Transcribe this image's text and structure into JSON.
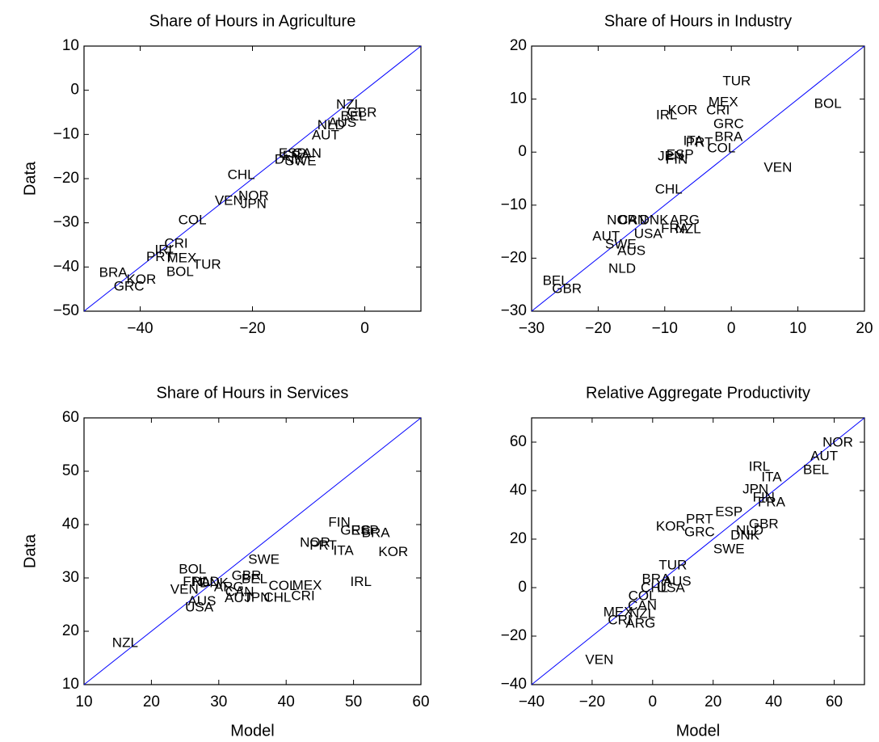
{
  "chart_data": [
    {
      "type": "scatter",
      "title": "Share of Hours in Agriculture",
      "ylabel": "Data",
      "color": "#0000ff",
      "labels": [
        "NZL",
        "GBR",
        "BEL",
        "AUS",
        "NLD",
        "AUT",
        "CAN",
        "ESP",
        "FRA",
        "DNK",
        "SWE",
        "CHL",
        "NOR",
        "VEN",
        "JPN",
        "COL",
        "CRI",
        "IRL",
        "PRT",
        "MEX",
        "KOR",
        "TUR",
        "BRA",
        "BOL",
        "GRC"
      ],
      "x": [
        -2.8,
        -0.5,
        -2,
        -4,
        -6,
        -7,
        -10.3,
        -12.9,
        -12.2,
        -13.5,
        -11.4,
        -22,
        -19.8,
        -24.2,
        -19.8,
        -30.7,
        -33.6,
        -35.5,
        -36.5,
        -32.6,
        -39.8,
        -28.1,
        -44.8,
        -32.9,
        -42
      ],
      "values": [
        -3.4,
        -5.2,
        -6,
        -7.5,
        -8,
        -10.3,
        -14.4,
        -14.4,
        -15,
        -15.8,
        -16.2,
        -19.3,
        -24,
        -25.1,
        -25.9,
        -29.5,
        -34.8,
        -36.3,
        -37.8,
        -38.1,
        -43,
        -39.6,
        -41.4,
        -41.2,
        -44.5
      ],
      "xlim": [
        -50,
        10
      ],
      "ylim": [
        -50,
        10
      ],
      "xticks": [
        {
          "value": -40,
          "label": "−40"
        },
        {
          "value": -20,
          "label": "−20"
        },
        0
      ],
      "yticks": [
        {
          "value": -50,
          "label": "−50"
        },
        {
          "value": -40,
          "label": "−40"
        },
        {
          "value": -30,
          "label": "−30"
        },
        {
          "value": -20,
          "label": "−20"
        },
        {
          "value": -10,
          "label": "−10"
        },
        0,
        10
      ]
    },
    {
      "type": "scatter",
      "title": "Share of Hours in Industry",
      "color": "#0000ff",
      "labels": [
        "TUR",
        "MEX",
        "KOR",
        "CRI",
        "IRL",
        "BOL",
        "GRC",
        "BRA",
        "ITA",
        "PRT",
        "COL",
        "JPN",
        "ESP",
        "FIN",
        "VEN",
        "CHL",
        "NOR",
        "CAN",
        "DNK",
        "ARG",
        "FRA",
        "NZL",
        "AUT",
        "USA",
        "SWE",
        "AUS",
        "NLD",
        "BEL",
        "GBR"
      ],
      "x": [
        0.8,
        -1.2,
        -7.3,
        -2,
        -9.7,
        14.5,
        -0.4,
        -0.4,
        -5.7,
        -4.8,
        -1.5,
        -9.1,
        -7.7,
        -8.2,
        7,
        -9.4,
        -16.4,
        -14.8,
        -11.6,
        -7,
        -8.5,
        -6.5,
        -18.8,
        -12.5,
        -16.6,
        -15,
        -16.4,
        -26.4,
        -24.7
      ],
      "values": [
        13.3,
        9.3,
        7.8,
        7.8,
        6.9,
        9,
        5.2,
        2.8,
        2,
        1.7,
        0.6,
        -0.9,
        -0.6,
        -1.5,
        -3,
        -7.1,
        -12.9,
        -12.9,
        -12.9,
        -12.9,
        -14.5,
        -14.6,
        -16,
        -15.5,
        -17.5,
        -18.7,
        -22.1,
        -24.4,
        -25.9
      ],
      "xlim": [
        -30,
        20
      ],
      "ylim": [
        -30,
        20
      ],
      "xticks": [
        {
          "value": -30,
          "label": "−30"
        },
        {
          "value": -20,
          "label": "−20"
        },
        {
          "value": -10,
          "label": "−10"
        },
        0,
        10,
        20
      ],
      "yticks": [
        {
          "value": -30,
          "label": "−30"
        },
        {
          "value": -20,
          "label": "−20"
        },
        {
          "value": -10,
          "label": "−10"
        },
        0,
        10,
        20
      ]
    },
    {
      "type": "scatter",
      "title": "Share of Hours in Services",
      "xlabel": "Model",
      "ylabel": "Data",
      "color": "#0000ff",
      "labels": [
        "FIN",
        "GRC",
        "ESP",
        "BRA",
        "NOR",
        "PRT",
        "ITA",
        "KOR",
        "SWE",
        "IRL",
        "BOL",
        "GBR",
        "BEL",
        "FRA",
        "NLD",
        "DNK",
        "ARG",
        "CAN",
        "MEX",
        "COL",
        "CHL",
        "CRI",
        "JPN",
        "AUT",
        "AUS",
        "VEN",
        "USA",
        "NZL"
      ],
      "x": [
        47.9,
        50.3,
        51.7,
        53.3,
        44.3,
        45.5,
        48.5,
        55.9,
        36.7,
        51.1,
        26.1,
        34.1,
        35.3,
        26.7,
        28.1,
        29.3,
        31.5,
        33.1,
        43.1,
        39.5,
        38.7,
        42.5,
        35.7,
        32.9,
        27.5,
        24.9,
        27.1,
        16.1
      ],
      "values": [
        40.3,
        38.8,
        38.8,
        38.3,
        36.5,
        36,
        35,
        34.8,
        33.3,
        29.2,
        31.5,
        30.3,
        29.7,
        29.2,
        29.2,
        28.9,
        28.2,
        27.3,
        28.5,
        28.4,
        26.2,
        26.5,
        26.2,
        26.1,
        25.5,
        27.7,
        24.4,
        17.7
      ],
      "xlim": [
        10,
        60
      ],
      "ylim": [
        10,
        60
      ],
      "xticks": [
        10,
        20,
        30,
        40,
        50,
        60
      ],
      "yticks": [
        10,
        20,
        30,
        40,
        50,
        60
      ]
    },
    {
      "type": "scatter",
      "title": "Relative Aggregate Productivity",
      "xlabel": "Model",
      "color": "#0000ff",
      "labels": [
        "NOR",
        "AUT",
        "BEL",
        "IRL",
        "ITA",
        "JPN",
        "FIN",
        "FRA",
        "ESP",
        "PRT",
        "KOR",
        "GRC",
        "GBR",
        "NLD",
        "DNK",
        "SWE",
        "TUR",
        "BRA",
        "AUS",
        "CHL",
        "USA",
        "COL",
        "CAN",
        "MEX",
        "NZL",
        "CRI",
        "ARG",
        "VEN"
      ],
      "x": [
        61.2,
        56.7,
        54,
        35.3,
        39.3,
        34,
        36.7,
        39.3,
        25.2,
        15.5,
        6,
        15.5,
        36.7,
        32.1,
        30.5,
        25.2,
        6.7,
        1.1,
        8.1,
        0.6,
        6,
        -3.4,
        -3.4,
        -11.4,
        -3.4,
        -10.9,
        -4,
        -17.6
      ],
      "values": [
        59.7,
        54,
        48.3,
        49.7,
        45.3,
        40.3,
        37,
        35,
        31,
        28,
        25,
        22.7,
        26,
        23.3,
        21.3,
        15.7,
        9,
        3.3,
        2.3,
        -0.3,
        -0.3,
        -3.7,
        -7.7,
        -10.3,
        -11,
        -13.7,
        -15,
        -30
      ],
      "xlim": [
        -40,
        70
      ],
      "ylim": [
        -40,
        70
      ],
      "xticks": [
        {
          "value": -40,
          "label": "−40"
        },
        {
          "value": -20,
          "label": "−20"
        },
        0,
        20,
        40,
        60
      ],
      "yticks": [
        {
          "value": -40,
          "label": "−40"
        },
        {
          "value": -20,
          "label": "−20"
        },
        0,
        20,
        40,
        60
      ]
    }
  ]
}
